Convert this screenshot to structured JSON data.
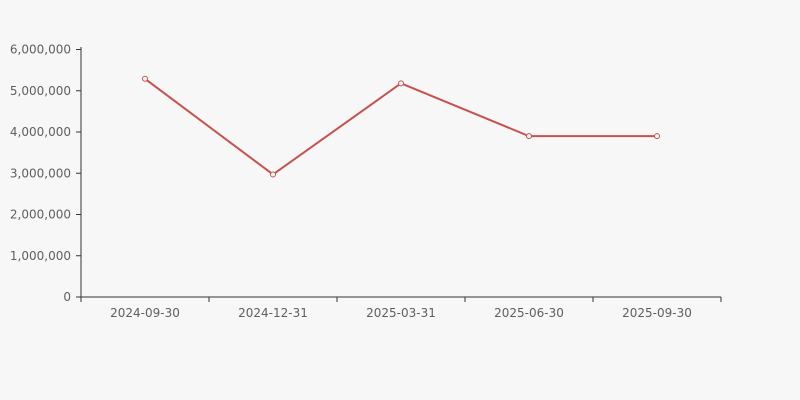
{
  "chart_data": {
    "type": "line",
    "title": "",
    "xlabel": "",
    "ylabel": "",
    "categories": [
      "2024-09-30",
      "2024-12-31",
      "2025-03-31",
      "2025-06-30",
      "2025-09-30"
    ],
    "series": [
      {
        "name": "series-1",
        "values": [
          5290000,
          2970000,
          5180000,
          3900000,
          3900000
        ]
      }
    ],
    "ylim": [
      0,
      6000000
    ],
    "y_ticks": [
      0,
      1000000,
      2000000,
      3000000,
      4000000,
      5000000,
      6000000
    ],
    "y_tick_labels": [
      "0",
      "1,000,000",
      "2,000,000",
      "3,000,000",
      "4,000,000",
      "5,000,000",
      "6,000,000"
    ],
    "grid": false,
    "legend_position": "none",
    "marker_shape": "open-circle",
    "colors": {
      "line": "#c5524e",
      "marker_fill": "#f7f7f7",
      "axis": "#333333",
      "tick": "#333333",
      "tick_label": "#5f5f5f",
      "background": "#f7f7f7"
    }
  }
}
